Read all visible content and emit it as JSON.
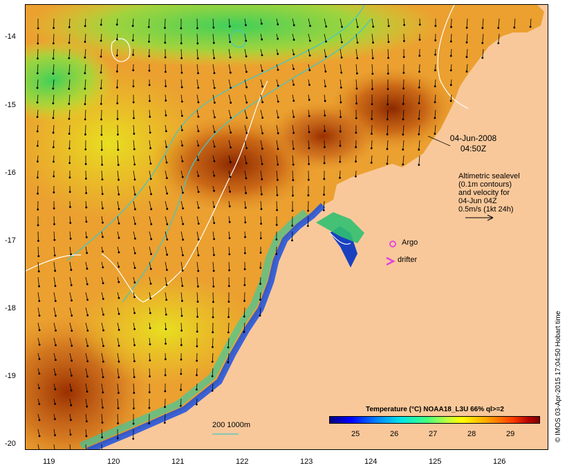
{
  "map": {
    "x_ticks": [
      "119",
      "120",
      "121",
      "122",
      "123",
      "124",
      "125",
      "126"
    ],
    "y_ticks": [
      "-14",
      "-15",
      "-16",
      "-17",
      "-18",
      "-19",
      "-20"
    ],
    "x_range": [
      118.6,
      126.7
    ],
    "y_range": [
      -20.1,
      -13.6
    ]
  },
  "annotations": {
    "date": "04-Jun-2008",
    "time": "04:50Z",
    "legend_lines": [
      "Altimetric sealevel",
      "(0.1m contours)",
      "and velocity for",
      "04-Jun 04Z",
      "0.5m/s (1kt 24h)"
    ],
    "argo_label": "Argo",
    "drifter_label": "drifter",
    "isobath_label": "200  1000m"
  },
  "colorbar": {
    "title": "Temperature (°C) NOAA18_L3U 66% ql>=2",
    "ticks": [
      "25",
      "26",
      "27",
      "28",
      "29"
    ]
  },
  "credit": "© IMOS 03-Apr-2015 17:04:50 Hobart time",
  "colors": {
    "land": "#f9c89a",
    "argo": "#e040e0",
    "drifter": "#e040e0",
    "isobath": "#40c8c8",
    "sealevel_contour": "#ffffff"
  }
}
